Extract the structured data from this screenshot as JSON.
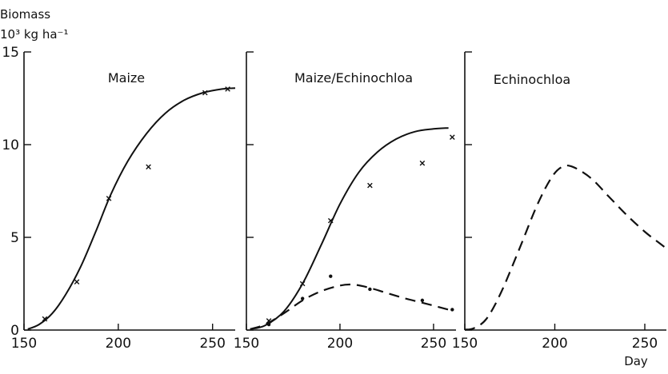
{
  "figure": {
    "ylabel_line1": "Biomass",
    "ylabel_line2": "10³ kg ha⁻¹"
  },
  "chart_data": [
    {
      "type": "line",
      "title": "Maize",
      "xlabel": "",
      "ylabel": "Biomass 10³ kg ha⁻¹",
      "xlim": [
        150,
        262
      ],
      "ylim": [
        0,
        15
      ],
      "x_ticks": [
        150,
        200,
        250
      ],
      "y_ticks": [
        0,
        5,
        10,
        15
      ],
      "grid": false,
      "series": [
        {
          "style": "solid",
          "points": [
            [
              152,
              0.05
            ],
            [
              158,
              0.3
            ],
            [
              165,
              0.9
            ],
            [
              172,
              1.9
            ],
            [
              180,
              3.4
            ],
            [
              188,
              5.3
            ],
            [
              196,
              7.3
            ],
            [
              205,
              9.1
            ],
            [
              215,
              10.6
            ],
            [
              225,
              11.7
            ],
            [
              235,
              12.4
            ],
            [
              245,
              12.8
            ],
            [
              255,
              13.0
            ],
            [
              262,
              13.05
            ]
          ]
        },
        {
          "style": "x-marker",
          "points": [
            [
              161,
              0.6
            ],
            [
              178,
              2.6
            ],
            [
              195,
              7.1
            ],
            [
              216,
              8.8
            ],
            [
              246,
              12.8
            ],
            [
              258,
              13.0
            ]
          ]
        }
      ]
    },
    {
      "type": "line",
      "title": "Maize/Echinochloa",
      "xlabel": "",
      "ylabel": "",
      "xlim": [
        150,
        262
      ],
      "ylim": [
        0,
        15
      ],
      "x_ticks": [
        150,
        200,
        250
      ],
      "y_ticks": [
        0,
        5,
        10,
        15
      ],
      "grid": false,
      "series": [
        {
          "style": "solid",
          "points": [
            [
              152,
              0.05
            ],
            [
              160,
              0.25
            ],
            [
              170,
              1.0
            ],
            [
              180,
              2.5
            ],
            [
              190,
              4.6
            ],
            [
              200,
              6.8
            ],
            [
              210,
              8.5
            ],
            [
              220,
              9.6
            ],
            [
              230,
              10.3
            ],
            [
              240,
              10.7
            ],
            [
              250,
              10.85
            ],
            [
              258,
              10.9
            ]
          ]
        },
        {
          "style": "dashed",
          "points": [
            [
              152,
              0.05
            ],
            [
              160,
              0.3
            ],
            [
              170,
              0.9
            ],
            [
              180,
              1.6
            ],
            [
              190,
              2.1
            ],
            [
              200,
              2.4
            ],
            [
              207,
              2.45
            ],
            [
              215,
              2.3
            ],
            [
              225,
              2.0
            ],
            [
              235,
              1.7
            ],
            [
              245,
              1.45
            ],
            [
              258,
              1.1
            ]
          ]
        },
        {
          "style": "x-marker",
          "points": [
            [
              162,
              0.5
            ],
            [
              180,
              2.5
            ],
            [
              195,
              5.9
            ],
            [
              216,
              7.8
            ],
            [
              244,
              9.0
            ],
            [
              260,
              10.4
            ]
          ]
        },
        {
          "style": "dot-marker",
          "points": [
            [
              162,
              0.3
            ],
            [
              180,
              1.7
            ],
            [
              195,
              2.9
            ],
            [
              216,
              2.2
            ],
            [
              244,
              1.6
            ],
            [
              260,
              1.1
            ]
          ]
        }
      ]
    },
    {
      "type": "line",
      "title": "Echinochloa",
      "xlabel": "Day",
      "ylabel": "",
      "xlim": [
        150,
        262
      ],
      "ylim": [
        0,
        15
      ],
      "x_ticks": [
        150,
        200,
        250
      ],
      "y_ticks": [
        0,
        5,
        10,
        15
      ],
      "grid": false,
      "series": [
        {
          "style": "dashed",
          "points": [
            [
              150,
              0.02
            ],
            [
              155,
              0.1
            ],
            [
              162,
              0.6
            ],
            [
              170,
              2.0
            ],
            [
              180,
              4.3
            ],
            [
              190,
              6.7
            ],
            [
              198,
              8.2
            ],
            [
              204,
              8.8
            ],
            [
              210,
              8.8
            ],
            [
              220,
              8.2
            ],
            [
              230,
              7.2
            ],
            [
              240,
              6.2
            ],
            [
              250,
              5.3
            ],
            [
              258,
              4.7
            ],
            [
              262,
              4.4
            ]
          ]
        }
      ]
    }
  ]
}
